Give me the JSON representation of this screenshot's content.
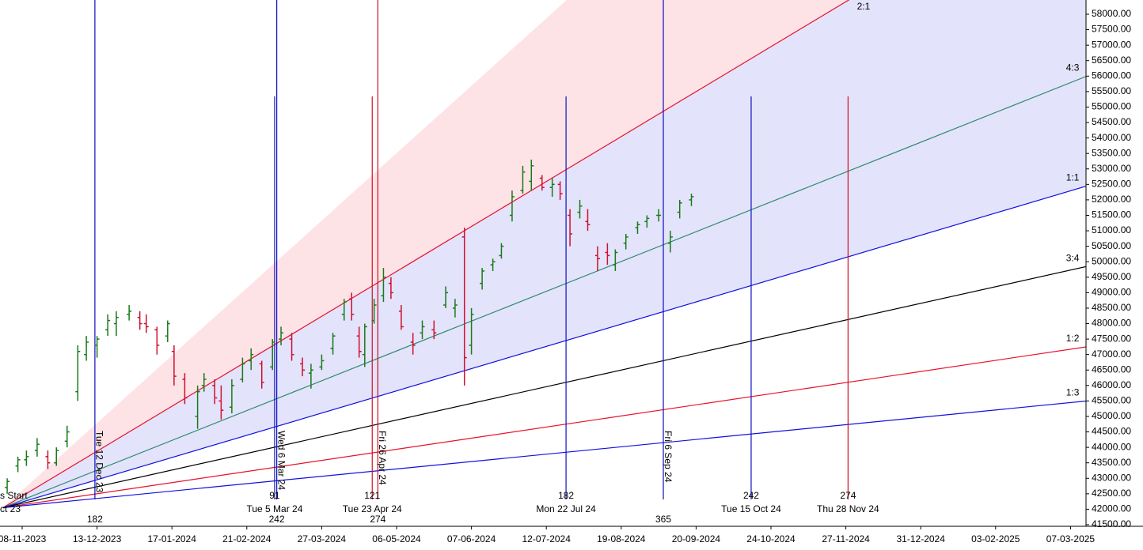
{
  "chart_data": {
    "type": "ohlc",
    "up_color": "#1a7a1a",
    "down_color": "#d01030",
    "x": [
      "2023-11-01",
      "2023-11-06",
      "2023-11-10",
      "2023-11-15",
      "2023-11-20",
      "2023-11-24",
      "2023-11-29",
      "2023-12-04",
      "2023-12-08",
      "2023-12-13",
      "2023-12-18",
      "2023-12-22",
      "2023-12-28",
      "2024-01-02",
      "2024-01-05",
      "2024-01-10",
      "2024-01-15",
      "2024-01-18",
      "2024-01-23",
      "2024-01-29",
      "2024-02-01",
      "2024-02-06",
      "2024-02-09",
      "2024-02-14",
      "2024-02-19",
      "2024-02-23",
      "2024-02-28",
      "2024-03-04",
      "2024-03-08",
      "2024-03-13",
      "2024-03-18",
      "2024-03-22",
      "2024-03-27",
      "2024-04-02",
      "2024-04-08",
      "2024-04-12",
      "2024-04-16",
      "2024-04-19",
      "2024-04-24",
      "2024-04-29",
      "2024-05-03",
      "2024-05-08",
      "2024-05-13",
      "2024-05-17",
      "2024-05-22",
      "2024-05-27",
      "2024-05-31",
      "2024-06-04",
      "2024-06-07",
      "2024-06-12",
      "2024-06-17",
      "2024-06-21",
      "2024-06-26",
      "2024-07-01",
      "2024-07-05",
      "2024-07-10",
      "2024-07-15",
      "2024-07-19",
      "2024-07-24",
      "2024-07-29",
      "2024-08-02",
      "2024-08-07",
      "2024-08-12",
      "2024-08-16",
      "2024-08-21",
      "2024-08-26",
      "2024-08-30",
      "2024-09-04",
      "2024-09-09",
      "2024-09-13",
      "2024-09-18"
    ],
    "open": [
      42700,
      43400,
      43600,
      43900,
      43700,
      43500,
      44200,
      45800,
      47000,
      47300,
      47800,
      48000,
      48300,
      48200,
      48000,
      47800,
      47600,
      47100,
      46200,
      45000,
      46000,
      46000,
      45500,
      45300,
      46200,
      46800,
      46700,
      46600,
      47500,
      47500,
      46700,
      46400,
      46600,
      47200,
      48300,
      48800,
      47600,
      47000,
      48100,
      48900,
      49300,
      48400,
      47400,
      47700,
      47800,
      48600,
      48500,
      50800,
      47300,
      49300,
      49900,
      50200,
      51500,
      52300,
      52600,
      52700,
      52400,
      52500,
      51500,
      51600,
      51300,
      50200,
      50300,
      49900,
      50600,
      51100,
      51300,
      51500,
      50600,
      51600,
      52000
    ],
    "high": [
      43000,
      43700,
      43900,
      44300,
      43900,
      44000,
      44700,
      47300,
      47600,
      47600,
      48300,
      48400,
      48600,
      48400,
      48300,
      47900,
      48100,
      47300,
      46400,
      46000,
      46400,
      46200,
      46000,
      46200,
      46900,
      47200,
      46800,
      47500,
      47900,
      47700,
      46900,
      46700,
      47000,
      47700,
      48800,
      49000,
      47900,
      48000,
      48800,
      49800,
      49500,
      48600,
      47700,
      48100,
      48100,
      49200,
      48800,
      51100,
      48500,
      49800,
      50100,
      50600,
      52300,
      53100,
      53300,
      52800,
      52700,
      52600,
      51700,
      52000,
      51700,
      50500,
      50600,
      50400,
      50900,
      51300,
      51500,
      51700,
      51000,
      52000,
      52200
    ],
    "low": [
      42500,
      43200,
      43400,
      43700,
      43300,
      43400,
      44000,
      45500,
      46800,
      46900,
      47600,
      47600,
      48100,
      47800,
      47700,
      47000,
      47400,
      46000,
      45400,
      44600,
      45800,
      45400,
      44900,
      45100,
      46100,
      46500,
      45900,
      46500,
      47300,
      46800,
      46300,
      45900,
      46500,
      47000,
      48100,
      48100,
      46900,
      46600,
      48000,
      48700,
      48800,
      47800,
      47000,
      47500,
      47500,
      48500,
      48200,
      46000,
      47000,
      49100,
      49700,
      50100,
      51300,
      52200,
      52300,
      52300,
      52100,
      52000,
      50500,
      51400,
      51000,
      49700,
      49900,
      49700,
      50400,
      50900,
      51100,
      51300,
      50300,
      51400,
      51800
    ],
    "close": [
      42900,
      43600,
      43700,
      44100,
      43500,
      43900,
      44500,
      47100,
      47400,
      47500,
      48100,
      48200,
      48400,
      48000,
      47900,
      47300,
      48000,
      46300,
      45600,
      45800,
      46200,
      45600,
      45200,
      46000,
      46700,
      47000,
      46100,
      47400,
      47700,
      47000,
      46500,
      46500,
      46800,
      47600,
      48700,
      48300,
      47100,
      47900,
      48600,
      49500,
      49000,
      47900,
      47300,
      47900,
      47700,
      49000,
      48600,
      46900,
      48300,
      49700,
      50000,
      50500,
      52100,
      52900,
      53100,
      52400,
      52500,
      52200,
      50900,
      51800,
      51200,
      50100,
      50200,
      50300,
      50800,
      51200,
      51400,
      51500,
      50800,
      51900,
      52100
    ],
    "ylim": [
      41500,
      58000
    ],
    "yticks": [
      {
        "value": 41500,
        "label": "41500.00"
      },
      {
        "value": 42000,
        "label": "42000.00"
      },
      {
        "value": 42500,
        "label": "42500.00"
      },
      {
        "value": 43000,
        "label": "43000.00"
      },
      {
        "value": 43500,
        "label": "43500.00"
      },
      {
        "value": 44000,
        "label": "44000.00"
      },
      {
        "value": 44500,
        "label": "44500.00"
      },
      {
        "value": 45000,
        "label": "45000.00"
      },
      {
        "value": 45500,
        "label": "45500.00"
      },
      {
        "value": 46000,
        "label": "46000.00"
      },
      {
        "value": 46500,
        "label": "46500.00"
      },
      {
        "value": 47000,
        "label": "47000.00"
      },
      {
        "value": 47500,
        "label": "47500.00"
      },
      {
        "value": 48000,
        "label": "48000.00"
      },
      {
        "value": 48500,
        "label": "48500.00"
      },
      {
        "value": 49000,
        "label": "49000.00"
      },
      {
        "value": 49500,
        "label": "49500.00"
      },
      {
        "value": 50000,
        "label": "50000.00"
      },
      {
        "value": 50500,
        "label": "50500.00"
      },
      {
        "value": 51000,
        "label": "51000.00"
      },
      {
        "value": 51500,
        "label": "51500.00"
      },
      {
        "value": 52000,
        "label": "52000.00"
      },
      {
        "value": 52500,
        "label": "52500.00"
      },
      {
        "value": 53000,
        "label": "53000.00"
      },
      {
        "value": 53500,
        "label": "53500.00"
      },
      {
        "value": 54000,
        "label": "54000.00"
      },
      {
        "value": 54500,
        "label": "54500.00"
      },
      {
        "value": 55000,
        "label": "55000.00"
      },
      {
        "value": 55500,
        "label": "55500.00"
      },
      {
        "value": 56000,
        "label": "56000.00"
      },
      {
        "value": 56500,
        "label": "56500.00"
      },
      {
        "value": 57000,
        "label": "57000.00"
      },
      {
        "value": 57500,
        "label": "57500.00"
      },
      {
        "value": 58000,
        "label": "58000.00"
      }
    ],
    "xticks": [
      {
        "value": "2023-11-08",
        "label": "08-11-2023"
      },
      {
        "value": "2023-12-13",
        "label": "13-12-2023"
      },
      {
        "value": "2024-01-17",
        "label": "17-01-2024"
      },
      {
        "value": "2024-02-21",
        "label": "21-02-2024"
      },
      {
        "value": "2024-03-27",
        "label": "27-03-2024"
      },
      {
        "value": "2024-05-06",
        "label": "06-05-2024"
      },
      {
        "value": "2024-06-07",
        "label": "07-06-2024"
      },
      {
        "value": "2024-07-12",
        "label": "12-07-2024"
      },
      {
        "value": "2024-08-19",
        "label": "19-08-2024"
      },
      {
        "value": "2024-09-20",
        "label": "20-09-2024"
      },
      {
        "value": "2024-10-24",
        "label": "24-10-2024"
      },
      {
        "value": "2024-11-27",
        "label": "27-11-2024"
      },
      {
        "value": "2024-12-31",
        "label": "31-12-2024"
      },
      {
        "value": "2025-02-03",
        "label": "03-02-2025"
      },
      {
        "value": "2025-03-07",
        "label": "07-03-2025"
      }
    ],
    "fan": {
      "origin": {
        "x": "2023-10-30",
        "value": 42050,
        "label": "s Start",
        "date_label": "ct 23"
      },
      "end_x": "2025-03-14",
      "lines": [
        {
          "value": 73600,
          "color": "none"
        },
        {
          "label": "2:1",
          "value": 63080,
          "color": "#e8102a"
        },
        {
          "label": "4:3",
          "value": 56000,
          "color": "#2e8b6e"
        },
        {
          "label": "1:1",
          "value": 52450,
          "color": "#1010e0"
        },
        {
          "label": "3:4",
          "value": 49850,
          "color": "#000000"
        },
        {
          "label": "1:2",
          "value": 47250,
          "color": "#e8102a"
        },
        {
          "label": "1:3",
          "value": 45500,
          "color": "#1010e0"
        }
      ],
      "shades": [
        {
          "lines": [
            0,
            1
          ],
          "color": "#fde3e6"
        },
        {
          "lines": [
            1,
            3
          ],
          "color": "#e3e3fb"
        }
      ]
    },
    "cycles": [
      {
        "x": "2023-12-12",
        "full": true,
        "color": "#1010c0",
        "count": 182,
        "date_label": "Tue 12 Dec 23"
      },
      {
        "x": "2024-03-06",
        "full": true,
        "color": "#1010c0",
        "count": 242,
        "date_label": "Wed 6 Mar 24"
      },
      {
        "x": "2024-04-26",
        "full": true,
        "color": "#d01020",
        "count": 274,
        "date_label": "Fri 26 Apr 24"
      },
      {
        "x": "2024-09-06",
        "full": true,
        "color": "#1010c0",
        "count": 365,
        "date_label": "Fri 6 Sep 24"
      },
      {
        "x": "2024-03-05",
        "full": false,
        "color": "#1010c0",
        "count": 91,
        "date_label": "Tue 5 Mar 24"
      },
      {
        "x": "2024-04-23",
        "full": false,
        "color": "#d01020",
        "count": 121,
        "date_label": "Tue 23 Apr 24"
      },
      {
        "x": "2024-07-22",
        "full": false,
        "color": "#1010c0",
        "count": 182,
        "date_label": "Mon 22 Jul 24"
      },
      {
        "x": "2024-10-15",
        "full": false,
        "color": "#1010c0",
        "count": 242,
        "date_label": "Tue 15 Oct 24"
      },
      {
        "x": "2024-11-28",
        "full": false,
        "color": "#d01020",
        "count": 274,
        "date_label": "Thu 28 Nov 24"
      }
    ]
  }
}
